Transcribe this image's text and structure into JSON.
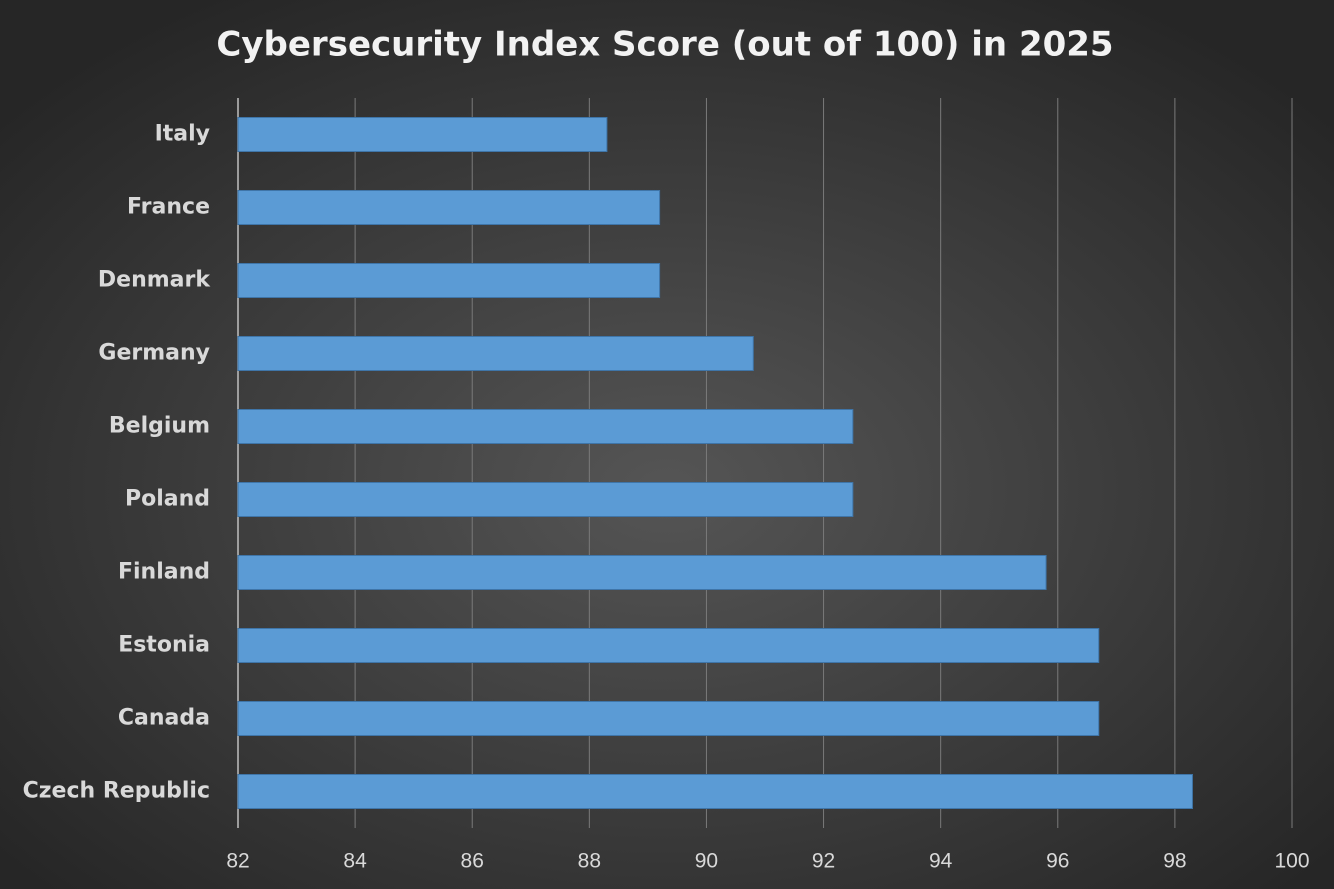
{
  "chart_data": {
    "type": "hbar",
    "title": "Cybersecurity Index Score (out of 100) in 2025",
    "categories": [
      "Italy",
      "France",
      "Denmark",
      "Germany",
      "Belgium",
      "Poland",
      "Finland",
      "Estonia",
      "Canada",
      "Czech Republic"
    ],
    "values": [
      88.3,
      89.2,
      89.2,
      90.8,
      92.5,
      92.5,
      95.8,
      96.7,
      96.7,
      98.3
    ],
    "color": "#5b9bd5",
    "xlim": [
      82,
      100
    ],
    "xticks": [
      82,
      84,
      86,
      88,
      90,
      92,
      94,
      96,
      98,
      100
    ],
    "grid": true
  }
}
